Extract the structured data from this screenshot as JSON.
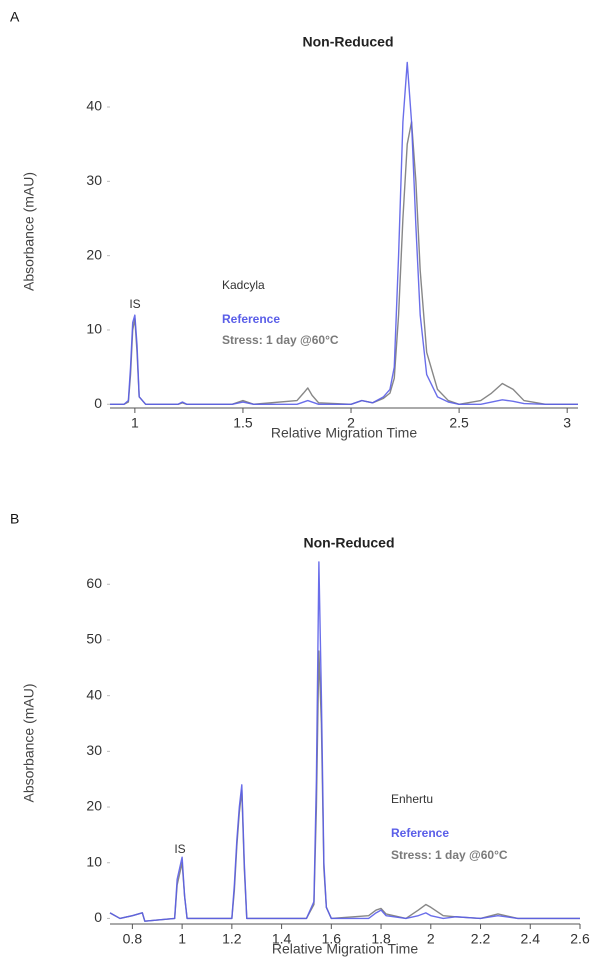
{
  "chart_data": [
    {
      "type": "line",
      "panel_label": "A",
      "title": "Non-Reduced",
      "xlabel": "Relative Migration Time",
      "ylabel": "Absorbance (mAU)",
      "peak_label": "IS",
      "product": "Kadcyla",
      "xlim": [
        0.885,
        3.05
      ],
      "xticks": [
        1,
        1.5,
        2,
        2.5,
        3
      ],
      "ylim": [
        -0.5,
        47
      ],
      "yticks": [
        0,
        10,
        20,
        30,
        40
      ],
      "x": [
        0.885,
        0.95,
        0.97,
        0.98,
        0.99,
        1.0,
        1.01,
        1.02,
        1.05,
        1.2,
        1.22,
        1.24,
        1.45,
        1.5,
        1.55,
        1.75,
        1.78,
        1.8,
        1.82,
        1.85,
        2.0,
        2.05,
        2.1,
        2.15,
        2.18,
        2.2,
        2.22,
        2.24,
        2.26,
        2.28,
        2.3,
        2.32,
        2.35,
        2.4,
        2.45,
        2.5,
        2.6,
        2.65,
        2.7,
        2.75,
        2.8,
        2.9,
        3.05
      ],
      "series": [
        {
          "name": "Reference",
          "color": "#5a5ee8",
          "values": [
            0,
            0,
            0.5,
            5,
            11,
            12,
            8,
            1,
            0,
            0,
            0.3,
            0,
            0,
            0.3,
            0,
            0,
            0.3,
            0.5,
            0.3,
            0,
            0,
            0.5,
            0.2,
            1,
            2,
            5,
            20,
            38,
            46,
            38,
            24,
            12,
            4,
            1,
            0.3,
            0,
            0,
            0.3,
            0.6,
            0.4,
            0.1,
            0,
            0
          ]
        },
        {
          "name": "Stress: 1 day @60°C",
          "color": "#7a7a7a",
          "values": [
            0,
            0,
            0.3,
            4,
            10,
            11.5,
            7,
            1,
            0,
            0,
            0.2,
            0,
            0,
            0.5,
            0,
            0.5,
            1.5,
            2.2,
            1.2,
            0.2,
            0,
            0.5,
            0.2,
            0.8,
            1.5,
            3.5,
            12,
            25,
            35,
            38,
            30,
            18,
            7,
            2,
            0.5,
            0,
            0.5,
            1.5,
            2.8,
            2,
            0.5,
            0,
            0
          ]
        }
      ]
    },
    {
      "type": "line",
      "panel_label": "B",
      "title": "Non-Reduced",
      "xlabel": "Relative Migration Time",
      "ylabel": "Absorbance (mAU)",
      "peak_label": "IS",
      "product": "Enhertu",
      "xlim": [
        0.71,
        2.6
      ],
      "xticks": [
        0.8,
        1,
        1.2,
        1.4,
        1.6,
        1.8,
        2,
        2.2,
        2.4,
        2.6
      ],
      "ylim": [
        -1,
        64
      ],
      "yticks": [
        0,
        10,
        20,
        30,
        40,
        50,
        60
      ],
      "x": [
        0.71,
        0.75,
        0.8,
        0.84,
        0.85,
        0.97,
        0.98,
        0.99,
        1.0,
        1.01,
        1.02,
        1.2,
        1.21,
        1.22,
        1.23,
        1.24,
        1.25,
        1.26,
        1.5,
        1.53,
        1.54,
        1.55,
        1.56,
        1.57,
        1.58,
        1.6,
        1.75,
        1.78,
        1.8,
        1.82,
        1.9,
        1.95,
        1.98,
        2.0,
        2.05,
        2.1,
        2.2,
        2.27,
        2.35,
        2.6
      ],
      "series": [
        {
          "name": "Reference",
          "color": "#5a5ee8",
          "values": [
            1,
            0,
            0.5,
            1,
            -0.5,
            0,
            7,
            9,
            11,
            4,
            0,
            0,
            6,
            14,
            20,
            24,
            10,
            0,
            0,
            3,
            25,
            64,
            40,
            10,
            2,
            0,
            0,
            1,
            1.5,
            0.5,
            0,
            0.5,
            1,
            0.5,
            0,
            0.3,
            0,
            0.5,
            0,
            0
          ]
        },
        {
          "name": "Stress: 1 day @60°C",
          "color": "#7a7a7a",
          "values": [
            1,
            0,
            0.5,
            1,
            -0.5,
            0,
            6,
            8,
            10,
            4,
            0,
            0,
            5,
            13,
            19,
            23,
            9,
            0,
            0,
            2.5,
            20,
            48,
            35,
            9,
            2,
            0,
            0.5,
            1.5,
            1.8,
            0.8,
            0,
            1.5,
            2.5,
            2,
            0.5,
            0.3,
            0,
            0.8,
            0,
            0
          ]
        }
      ]
    }
  ]
}
